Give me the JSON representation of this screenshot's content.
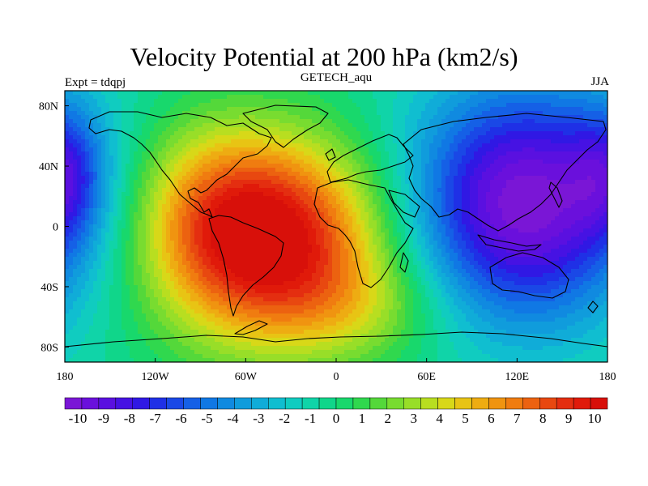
{
  "title": "Velocity Potential at 200 hPa (km2/s)",
  "subtitle": "GETECH_aqu",
  "left_label": "Expt = tdqpj",
  "right_label": "JJA",
  "map": {
    "lon_range": [
      -180,
      180
    ],
    "lat_range": [
      -90,
      90
    ],
    "x_ticks": [
      {
        "lon": -180,
        "label": "180"
      },
      {
        "lon": -120,
        "label": "120W"
      },
      {
        "lon": -60,
        "label": "60W"
      },
      {
        "lon": 0,
        "label": "0"
      },
      {
        "lon": 60,
        "label": "60E"
      },
      {
        "lon": 120,
        "label": "120E"
      },
      {
        "lon": 180,
        "label": "180"
      }
    ],
    "y_ticks": [
      {
        "lat": 80,
        "label": "80N"
      },
      {
        "lat": 40,
        "label": "40N"
      },
      {
        "lat": 0,
        "label": "0"
      },
      {
        "lat": -40,
        "label": "40S"
      },
      {
        "lat": -80,
        "label": "80S"
      }
    ],
    "field": {
      "background": -0.5,
      "centers": [
        {
          "lon": -45,
          "lat": -10,
          "amp": 11.5,
          "sx": 55,
          "sy": 48
        },
        {
          "lon": -85,
          "lat": 20,
          "amp": 2.0,
          "sx": 35,
          "sy": 40
        },
        {
          "lon": 20,
          "lat": -55,
          "amp": 2.0,
          "sx": 40,
          "sy": 25
        },
        {
          "lon": 125,
          "lat": 15,
          "amp": -10.0,
          "sx": 55,
          "sy": 55
        },
        {
          "lon": -178,
          "lat": 35,
          "amp": -3.5,
          "sx": 18,
          "sy": 30
        }
      ]
    }
  },
  "colorbar": {
    "colors": [
      "#7a16d6",
      "#6a10dc",
      "#5a10e0",
      "#4612e3",
      "#3018e4",
      "#1f30e6",
      "#1a48e6",
      "#1560e6",
      "#1078e4",
      "#108ae0",
      "#109cdc",
      "#10acd8",
      "#10bed0",
      "#10ccc0",
      "#10d4a8",
      "#10d68a",
      "#18d86c",
      "#30d84e",
      "#54d83a",
      "#78dc30",
      "#98de28",
      "#b8de20",
      "#d8d818",
      "#e8c414",
      "#eeac12",
      "#f09410",
      "#f07c10",
      "#ec6210",
      "#e84810",
      "#e42e10",
      "#e01a0a",
      "#d8100a"
    ],
    "labels": [
      "-10",
      "-9",
      "-8",
      "-7",
      "-6",
      "-5",
      "-4",
      "-3",
      "-2",
      "-1",
      "0",
      "1",
      "2",
      "3",
      "4",
      "5",
      "6",
      "7",
      "8",
      "9",
      "10"
    ],
    "vmin": -10.5,
    "vmax": 10.5
  }
}
